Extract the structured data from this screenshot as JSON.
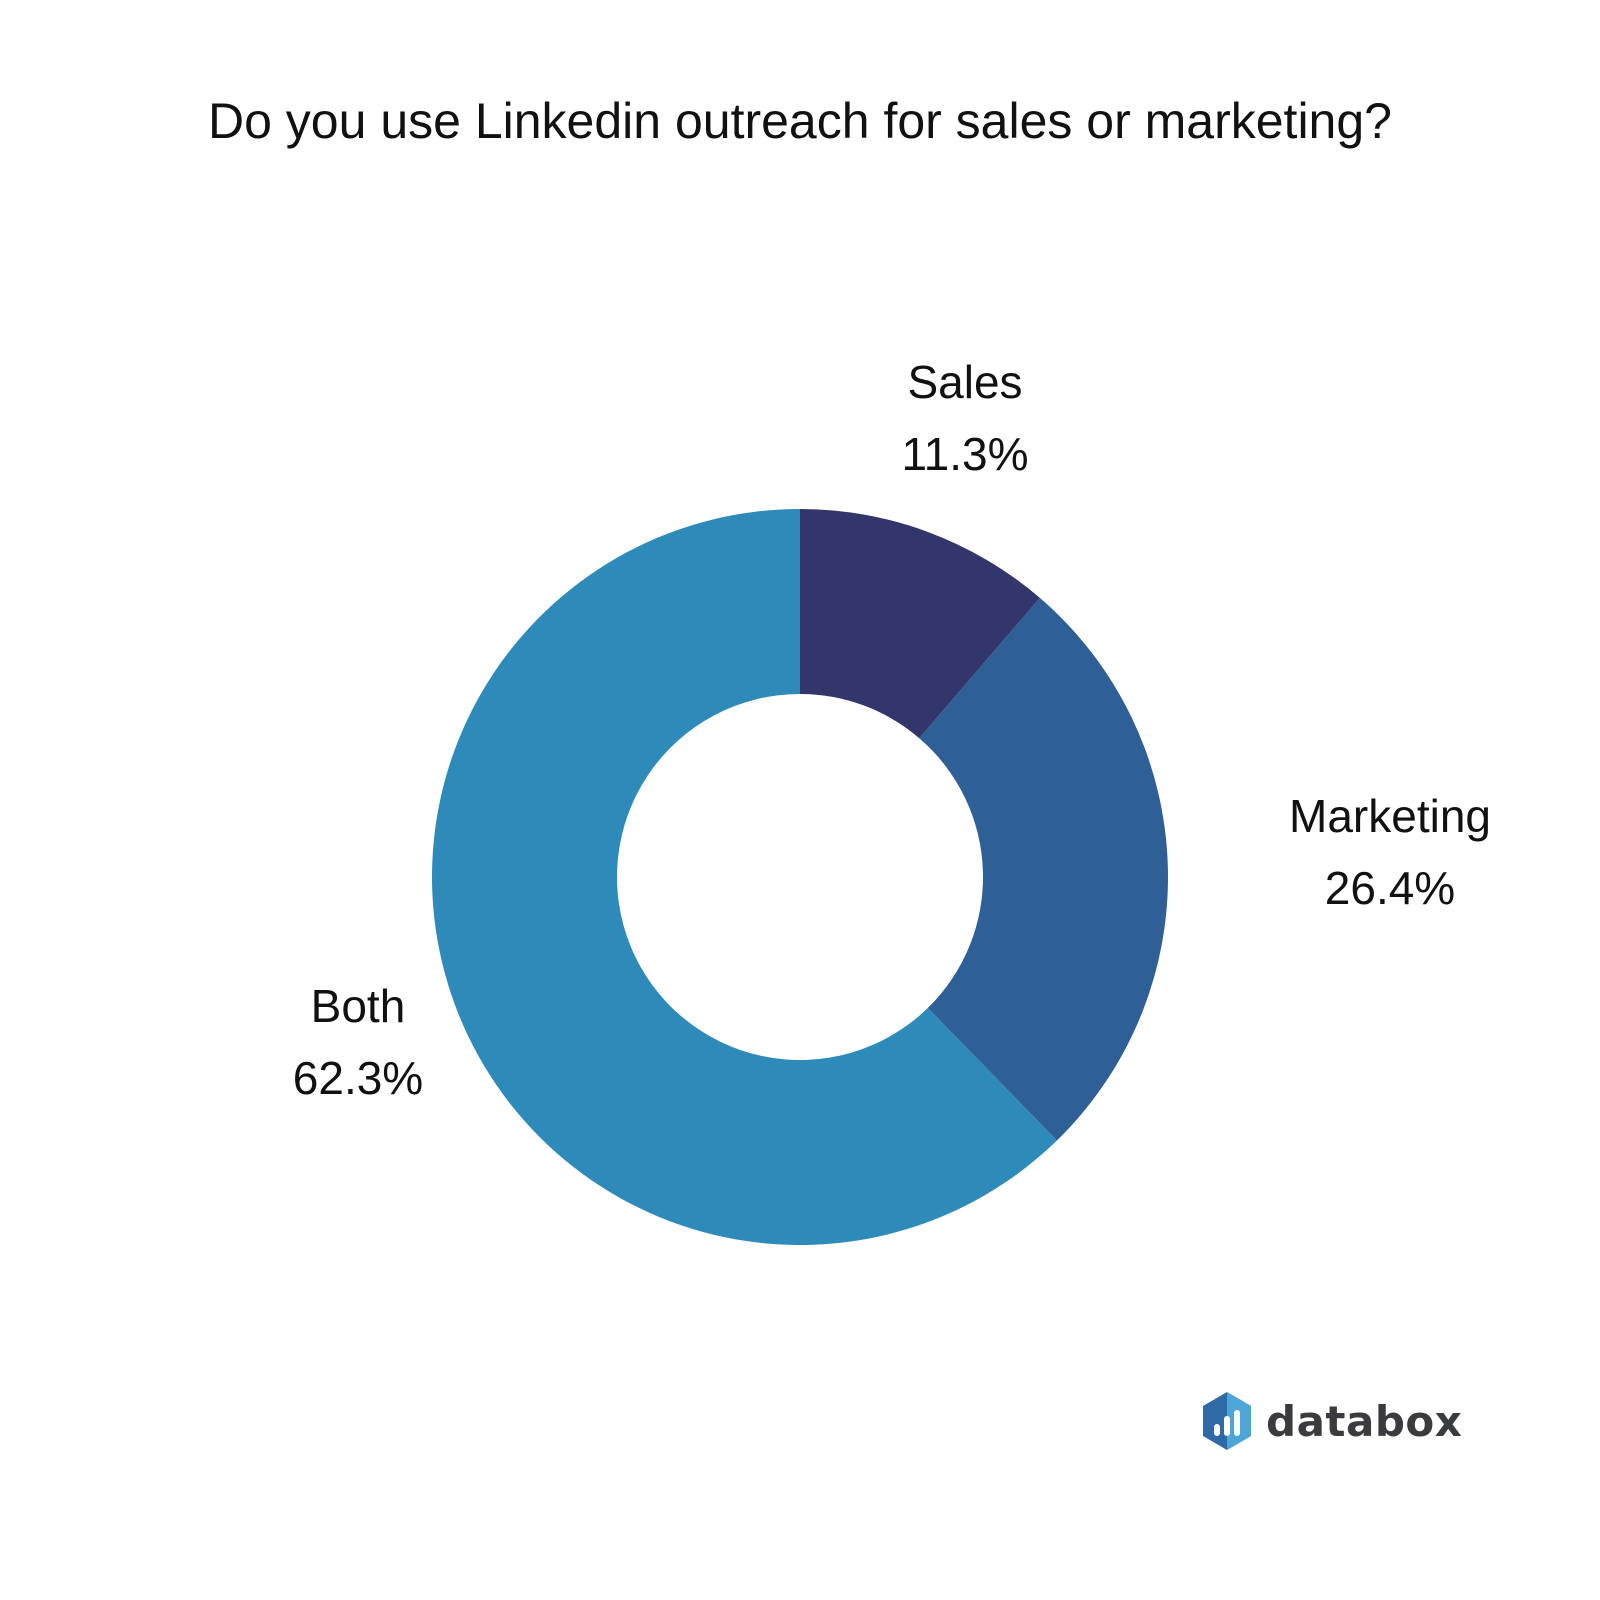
{
  "chart_data": {
    "type": "donut",
    "title": "Do you use Linkedin outreach for sales or marketing?",
    "slices": [
      {
        "label": "Sales",
        "value": 11.3,
        "display": "11.3%",
        "color": "#33366b"
      },
      {
        "label": "Marketing",
        "value": 26.4,
        "display": "26.4%",
        "color": "#2f5f97"
      },
      {
        "label": "Both",
        "value": 62.3,
        "display": "62.3%",
        "color": "#2e8bb9"
      }
    ],
    "start_angle_deg": 0,
    "direction": "clockwise",
    "legend": "none"
  },
  "branding": {
    "logo_text": "databox",
    "logo_colors": {
      "hex_dark": "#2f6aa6",
      "hex_light": "#4ea6d8",
      "text": "#3a3b3f"
    },
    "logo_icon": "databox-hexagon-bars-icon"
  }
}
